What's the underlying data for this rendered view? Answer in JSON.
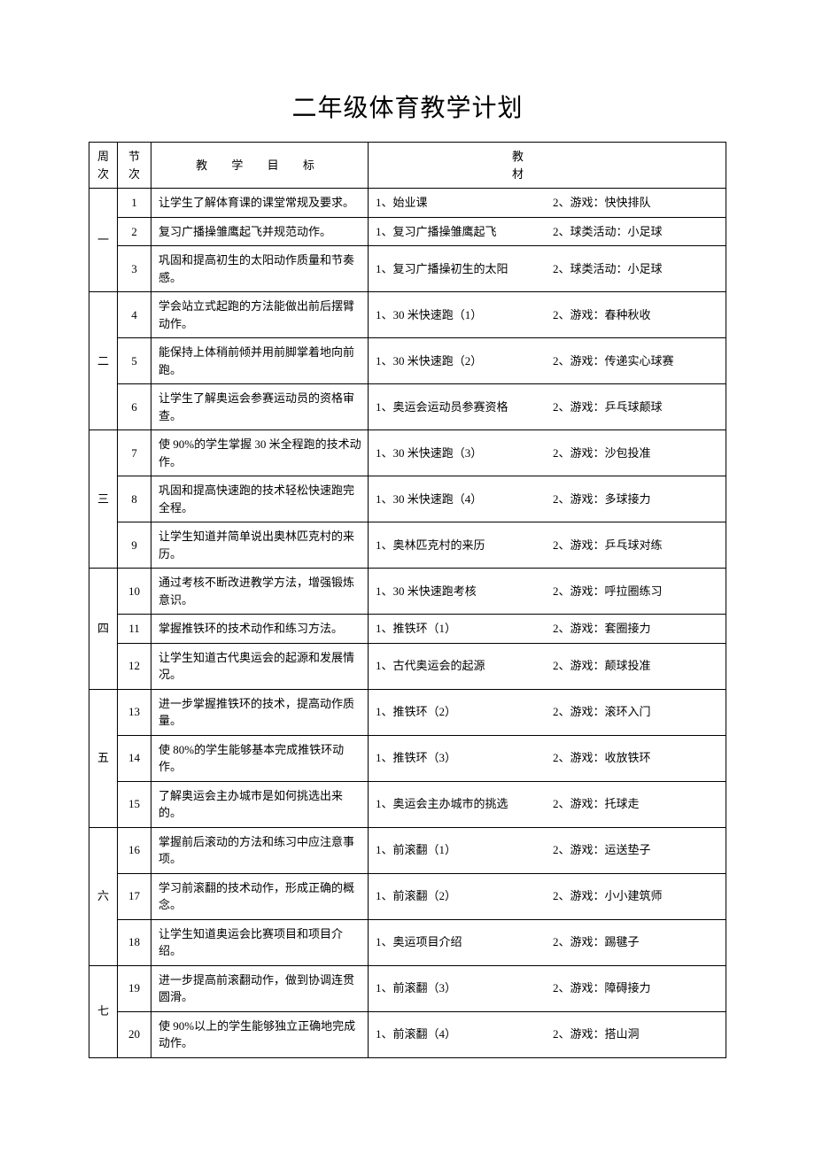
{
  "title": "二年级体育教学计划",
  "headers": {
    "week": "周次",
    "session": "节次",
    "goal": "教 学 目 标",
    "material": "教材"
  },
  "weeks": [
    {
      "label": "一",
      "rows": [
        {
          "session": "1",
          "goal": "让学生了解体育课的课堂常规及要求。",
          "m1": "1、始业课",
          "m2": "2、游戏：快快排队"
        },
        {
          "session": "2",
          "goal": "复习广播操雏鹰起飞并规范动作。",
          "m1": "1、复习广播操雏鹰起飞",
          "m2": "2、球类活动：小足球"
        },
        {
          "session": "3",
          "goal": "巩固和提高初生的太阳动作质量和节奏感。",
          "m1": "1、复习广播操初生的太阳",
          "m2": "2、球类活动：小足球"
        }
      ]
    },
    {
      "label": "二",
      "rows": [
        {
          "session": "4",
          "goal": "学会站立式起跑的方法能做出前后摆臂动作。",
          "m1": "1、30 米快速跑（1）",
          "m2": "2、游戏：春种秋收"
        },
        {
          "session": "5",
          "goal": "能保持上体稍前倾并用前脚掌着地向前跑。",
          "m1": "1、30 米快速跑（2）",
          "m2": "2、游戏：传递实心球赛"
        },
        {
          "session": "6",
          "goal": "让学生了解奥运会参赛运动员的资格审查。",
          "m1": "1、奥运会运动员参赛资格",
          "m2": "2、游戏：乒乓球颠球"
        }
      ]
    },
    {
      "label": "三",
      "rows": [
        {
          "session": "7",
          "goal": "使 90%的学生掌握 30 米全程跑的技术动作。",
          "m1": "1、30 米快速跑（3）",
          "m2": "2、游戏：沙包投准"
        },
        {
          "session": "8",
          "goal": "巩固和提高快速跑的技术轻松快速跑完全程。",
          "m1": "1、30 米快速跑（4）",
          "m2": "2、游戏：多球接力"
        },
        {
          "session": "9",
          "goal": "让学生知道并简单说出奥林匹克村的来历。",
          "m1": "1、奥林匹克村的来历",
          "m2": "2、游戏：乒乓球对练"
        }
      ]
    },
    {
      "label": "四",
      "rows": [
        {
          "session": "10",
          "goal": "通过考核不断改进教学方法，增强锻炼意识。",
          "m1": "1、30 米快速跑考核",
          "m2": "2、游戏：呼拉圈练习"
        },
        {
          "session": "11",
          "goal": "掌握推铁环的技术动作和练习方法。",
          "m1": "1、推铁环（1）",
          "m2": "2、游戏：套圈接力"
        },
        {
          "session": "12",
          "goal": "让学生知道古代奥运会的起源和发展情况。",
          "m1": "1、古代奥运会的起源",
          "m2": "2、游戏：颠球投准"
        }
      ]
    },
    {
      "label": "五",
      "rows": [
        {
          "session": "13",
          "goal": "进一步掌握推铁环的技术，提高动作质量。",
          "m1": "1、推铁环（2）",
          "m2": "2、游戏：滚环入门"
        },
        {
          "session": "14",
          "goal": "使 80%的学生能够基本完成推铁环动作。",
          "m1": "1、推铁环（3）",
          "m2": "2、游戏：收放铁环"
        },
        {
          "session": "15",
          "goal": "了解奥运会主办城市是如何挑选出来的。",
          "m1": "1、奥运会主办城市的挑选",
          "m2": "2、游戏：托球走"
        }
      ]
    },
    {
      "label": "六",
      "rows": [
        {
          "session": "16",
          "goal": "掌握前后滚动的方法和练习中应注意事项。",
          "m1": "1、前滚翻（1）",
          "m2": "2、游戏：运送垫子"
        },
        {
          "session": "17",
          "goal": "学习前滚翻的技术动作，形成正确的概念。",
          "m1": "1、前滚翻（2）",
          "m2": "2、游戏：小小建筑师"
        },
        {
          "session": "18",
          "goal": "让学生知道奥运会比赛项目和项目介绍。",
          "m1": "1、奥运项目介绍",
          "m2": "2、游戏：踢毽子"
        }
      ]
    },
    {
      "label": "七",
      "rows": [
        {
          "session": "19",
          "goal": "进一步提高前滚翻动作，做到协调连贯圆滑。",
          "m1": "1、前滚翻（3）",
          "m2": "2、游戏：障碍接力"
        },
        {
          "session": "20",
          "goal": "使 90%以上的学生能够独立正确地完成动作。",
          "m1": "1、前滚翻（4）",
          "m2": "2、游戏：搭山洞"
        }
      ]
    }
  ]
}
